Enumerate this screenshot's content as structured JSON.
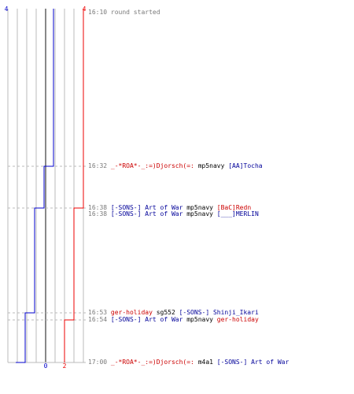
{
  "colors": {
    "team_a": "#0000cc",
    "team_b": "#ee0000",
    "grid": "#bbbbbb",
    "center": "#888888",
    "dash": "#bbbbbb"
  },
  "chart_data": {
    "type": "line",
    "xlabel": "",
    "ylabel": "",
    "x": [
      "16:10",
      "16:32",
      "16:38",
      "16:53",
      "16:54",
      "17:00"
    ],
    "axis_labels": {
      "blue_top": "4",
      "red_top": "4",
      "blue_bottom": "0",
      "red_bottom": "2"
    },
    "series": [
      {
        "color": "#0000cc",
        "values": [
          4,
          3,
          2,
          1,
          1,
          0
        ]
      },
      {
        "color": "#ee0000",
        "values": [
          4,
          4,
          3,
          3,
          2,
          2
        ]
      }
    ]
  },
  "log": [
    {
      "time": "16:10",
      "parts": [
        {
          "text": "round started",
          "cls": "grey"
        }
      ]
    },
    {
      "time": "16:32",
      "parts": [
        {
          "text": "_-*ROA*-_:=)Djorsch(=:",
          "cls": "red"
        },
        {
          "text": " mp5navy ",
          "cls": "plain"
        },
        {
          "text": "[AA]Tocha",
          "cls": "blue"
        }
      ]
    },
    {
      "time": "16:38",
      "parts": [
        {
          "text": "[-SONS-] Art of War",
          "cls": "blue"
        },
        {
          "text": " mp5navy ",
          "cls": "plain"
        },
        {
          "text": "[BaC]Redn",
          "cls": "red"
        }
      ]
    },
    {
      "time": "16:38",
      "parts": [
        {
          "text": "[-SONS-] Art of War",
          "cls": "blue"
        },
        {
          "text": " mp5navy ",
          "cls": "plain"
        },
        {
          "text": "[___]MERLIN",
          "cls": "blue"
        }
      ]
    },
    {
      "time": "16:53",
      "parts": [
        {
          "text": "ger-holiday",
          "cls": "red"
        },
        {
          "text": " sg552 ",
          "cls": "plain"
        },
        {
          "text": "[-SONS-] Shinji_Ikari",
          "cls": "blue"
        }
      ]
    },
    {
      "time": "16:54",
      "parts": [
        {
          "text": "[-SONS-] Art of War",
          "cls": "blue"
        },
        {
          "text": " mp5navy ",
          "cls": "plain"
        },
        {
          "text": "ger-holiday",
          "cls": "red"
        }
      ]
    },
    {
      "time": "17:00",
      "parts": [
        {
          "text": "_-*ROA*-_:=)Djorsch(=:",
          "cls": "red"
        },
        {
          "text": " m4a1 ",
          "cls": "plain"
        },
        {
          "text": "[-SONS-] Art of War",
          "cls": "blue"
        }
      ]
    }
  ]
}
